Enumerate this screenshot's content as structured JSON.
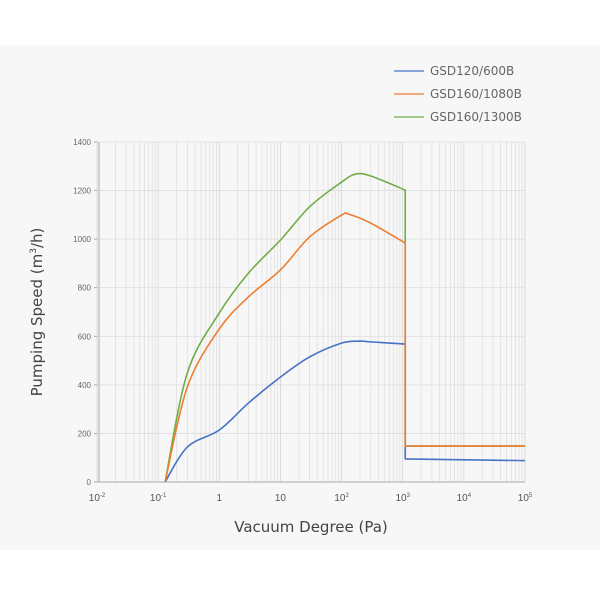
{
  "chart_data": {
    "type": "line",
    "title": "",
    "xlabel": "Vacuum Degree (Pa)",
    "ylabel": "Pumping Speed (m³/h)",
    "ylabel_parts": {
      "before": "Pumping Speed (m",
      "sup": "3",
      "after": "/h)"
    },
    "x_scale": "log",
    "xlim": [
      0.01,
      100000
    ],
    "ylim": [
      0,
      1400
    ],
    "grid": true,
    "legend_position": "top-right",
    "x_ticks": [
      {
        "value": 0.01,
        "base": "10",
        "exp": "-2"
      },
      {
        "value": 0.1,
        "base": "10",
        "exp": "-1"
      },
      {
        "value": 1,
        "base": "1",
        "exp": ""
      },
      {
        "value": 10,
        "base": "10",
        "exp": ""
      },
      {
        "value": 100,
        "base": "10",
        "exp": "2"
      },
      {
        "value": 1000,
        "base": "10",
        "exp": "3"
      },
      {
        "value": 10000,
        "base": "10",
        "exp": "4"
      },
      {
        "value": 100000,
        "base": "10",
        "exp": "5"
      }
    ],
    "y_ticks": [
      "0",
      "200",
      "400",
      "600",
      "800",
      "1000",
      "1200",
      "1400"
    ],
    "series": [
      {
        "name": "GSD160/1300B",
        "color": "#70ad47",
        "x": [
          0.13,
          0.3,
          1,
          3,
          10,
          30,
          100,
          170,
          300,
          1100,
          1100,
          100000
        ],
        "y": [
          0,
          449,
          696,
          860,
          996,
          1133,
          1235,
          1268,
          1260,
          1202,
          148,
          148
        ]
      },
      {
        "name": "GSD160/1080B",
        "color": "#ed7d31",
        "x": [
          0.13,
          0.3,
          1,
          3,
          10,
          30,
          100,
          130,
          300,
          1100,
          1100,
          100000
        ],
        "y": [
          0,
          391,
          630,
          762,
          873,
          1009,
          1099,
          1103,
          1066,
          984,
          148,
          148
        ]
      },
      {
        "name": "GSD120/600B",
        "color": "#4472c4",
        "x": [
          0.13,
          0.3,
          1,
          3,
          10,
          30,
          100,
          200,
          300,
          1100,
          1100,
          100000
        ],
        "y": [
          0,
          144,
          214,
          325,
          432,
          515,
          572,
          580,
          577,
          568,
          95,
          88
        ]
      }
    ],
    "legend": [
      {
        "name": "GSD120/600B",
        "color": "#4472c4"
      },
      {
        "name": "GSD160/1080B",
        "color": "#ed7d31"
      },
      {
        "name": "GSD160/1300B",
        "color": "#70ad47"
      }
    ],
    "draw_order": [
      "GSD120/600B",
      "GSD160/1300B",
      "GSD160/1080B"
    ]
  }
}
